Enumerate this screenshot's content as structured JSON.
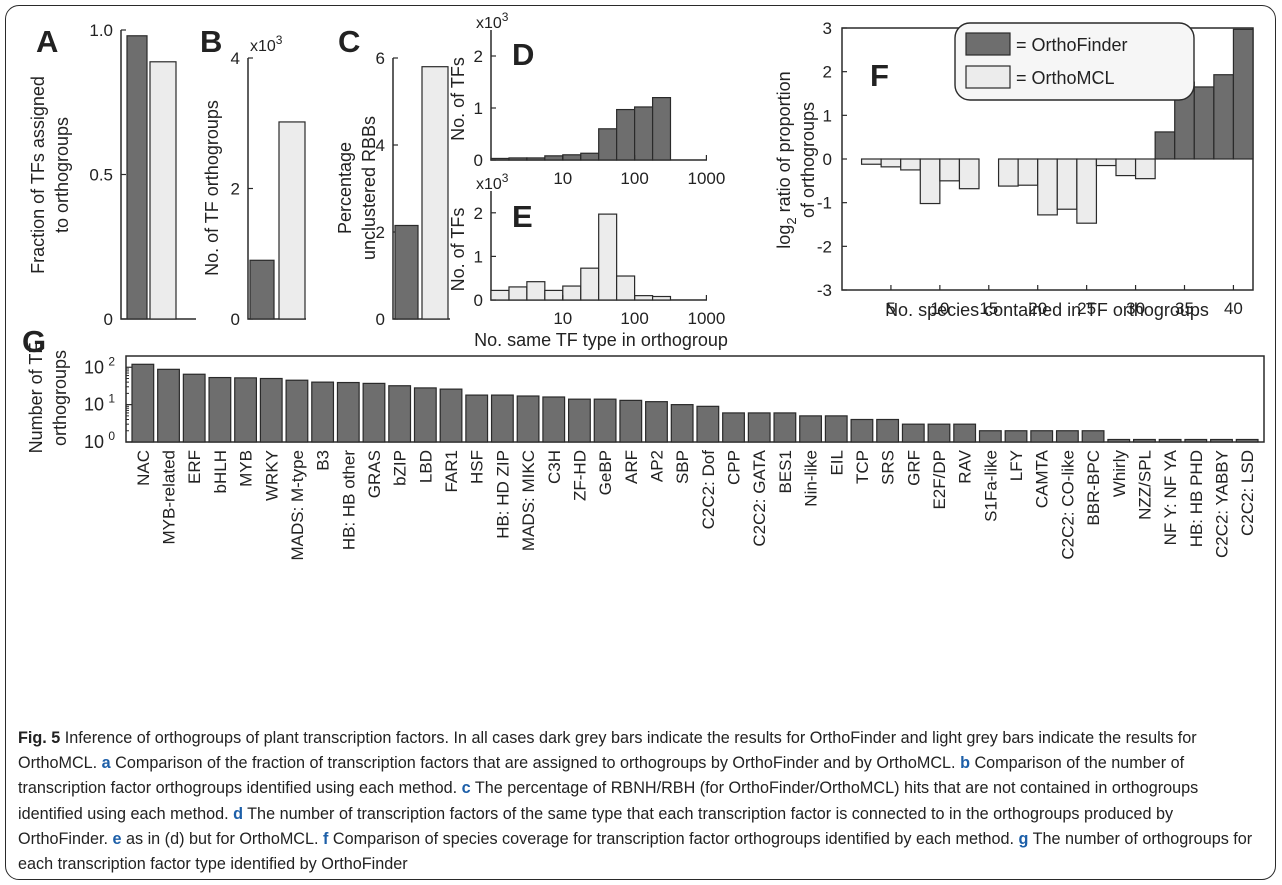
{
  "colors": {
    "orthofinder": "#6e6e6e",
    "orthomcl": "#ececec",
    "stroke": "#2a2a2a",
    "caption_accent": "#1d5fa8"
  },
  "legend": {
    "orthofinder": "= OrthoFinder",
    "orthomcl": "= OrthoMCL"
  },
  "chart_data": [
    {
      "panel": "A",
      "type": "bar",
      "ylabel": "Fraction of TFs assigned to orthogroups",
      "ylim": [
        0,
        1.0
      ],
      "yticks": [
        "0",
        "0.5",
        "1.0"
      ],
      "series": [
        {
          "name": "OrthoFinder",
          "values": [
            0.98
          ]
        },
        {
          "name": "OrthoMCL",
          "values": [
            0.89
          ]
        }
      ]
    },
    {
      "panel": "B",
      "type": "bar",
      "ylabel": "No. of TF orthogroups",
      "multiplier": "x10",
      "multiplier_exp": "3",
      "ylim": [
        0,
        4
      ],
      "yticks": [
        "0",
        "2",
        "4"
      ],
      "series": [
        {
          "name": "OrthoFinder",
          "values": [
            0.9
          ]
        },
        {
          "name": "OrthoMCL",
          "values": [
            3.02
          ]
        }
      ]
    },
    {
      "panel": "C",
      "type": "bar",
      "ylabel": "Percentage unclustered RBBs",
      "ylim": [
        0,
        6
      ],
      "yticks": [
        "0",
        "2",
        "4",
        "6"
      ],
      "series": [
        {
          "name": "OrthoFinder",
          "values": [
            2.15
          ]
        },
        {
          "name": "OrthoMCL",
          "values": [
            5.8
          ]
        }
      ]
    },
    {
      "panel": "D",
      "type": "bar",
      "scale": "log-x histogram",
      "ylabel": "No. of TFs",
      "multiplier": "x10",
      "multiplier_exp": "3",
      "ylim": [
        0,
        2.5
      ],
      "yticks": [
        "0",
        "1",
        "2"
      ],
      "xticks": [
        "10",
        "100",
        "1000"
      ],
      "bins": [
        [
          1,
          1.78,
          0.03
        ],
        [
          1.78,
          3.16,
          0.04
        ],
        [
          3.16,
          5.62,
          0.04
        ],
        [
          5.62,
          10,
          0.08
        ],
        [
          10,
          17.8,
          0.1
        ],
        [
          17.8,
          31.6,
          0.13
        ],
        [
          31.6,
          56.2,
          0.6
        ],
        [
          56.2,
          100,
          0.97
        ],
        [
          100,
          178,
          1.02
        ],
        [
          178,
          316,
          1.2
        ]
      ]
    },
    {
      "panel": "E",
      "type": "bar",
      "scale": "log-x histogram",
      "ylabel": "No. of TFs",
      "multiplier": "x10",
      "multiplier_exp": "3",
      "xlabel": "No. same TF type in orthogroup",
      "ylim": [
        0,
        2.5
      ],
      "yticks": [
        "0",
        "1",
        "2"
      ],
      "xticks": [
        "10",
        "100",
        "1000"
      ],
      "bins": [
        [
          1,
          1.78,
          0.22
        ],
        [
          1.78,
          3.16,
          0.3
        ],
        [
          3.16,
          5.62,
          0.42
        ],
        [
          5.62,
          10,
          0.22
        ],
        [
          10,
          17.8,
          0.32
        ],
        [
          17.8,
          31.6,
          0.73
        ],
        [
          31.6,
          56.2,
          1.97
        ],
        [
          56.2,
          100,
          0.55
        ],
        [
          100,
          178,
          0.1
        ],
        [
          178,
          316,
          0.08
        ]
      ]
    },
    {
      "panel": "F",
      "type": "bar",
      "ylabel": "log2 ratio of proportion of orthogroups",
      "xlabel": "No. species contained in TF orthogroups",
      "ylim": [
        -3,
        3
      ],
      "xlim": [
        0,
        42
      ],
      "yticks": [
        "-3",
        "-2",
        "-1",
        "0",
        "1",
        "2",
        "3"
      ],
      "xticks": [
        "5",
        "10",
        "15",
        "20",
        "25",
        "30",
        "35",
        "40"
      ],
      "x": [
        3,
        5,
        7,
        9,
        11,
        13,
        17,
        19,
        21,
        23,
        25,
        27,
        29,
        31,
        33,
        35,
        37,
        39,
        41
      ],
      "values": [
        -0.12,
        -0.18,
        -0.25,
        -1.02,
        -0.5,
        -0.68,
        -0.62,
        -0.6,
        -1.28,
        -1.15,
        -1.47,
        -0.15,
        -0.38,
        -0.45,
        0.62,
        1.76,
        1.65,
        1.93,
        2.97
      ]
    },
    {
      "panel": "G",
      "type": "bar",
      "scale": "log-y",
      "ylabel": "Number of TF orthogroups",
      "ylim": [
        1,
        200
      ],
      "categories": [
        "NAC",
        "MYB-related",
        "ERF",
        "bHLH",
        "MYB",
        "WRKY",
        "MADS: M-type",
        "B3",
        "HB: HB other",
        "GRAS",
        "bZIP",
        "LBD",
        "FAR1",
        "HSF",
        "HB: HD ZIP",
        "MADS: MIKC",
        "C3H",
        "ZF-HD",
        "GeBP",
        "ARF",
        "AP2",
        "SBP",
        "C2C2: Dof",
        "CPP",
        "C2C2: GATA",
        "BES1",
        "Nin-like",
        "EIL",
        "TCP",
        "SRS",
        "GRF",
        "E2F/DP",
        "RAV",
        "S1Fa-like",
        "LFY",
        "CAMTA",
        "C2C2: CO-like",
        "BBR-BPC",
        "Whirly",
        "NZZ/SPL",
        "NF Y: NF YA",
        "HB: HB PHD",
        "C2C2: YABBY",
        "C2C2: LSD"
      ],
      "values": [
        120,
        88,
        65,
        53,
        52,
        50,
        45,
        40,
        39,
        37,
        32,
        28,
        26,
        18,
        18,
        17,
        16,
        14,
        14,
        13,
        12,
        10,
        9,
        6,
        6,
        6,
        5,
        5,
        4,
        4,
        3,
        3,
        3,
        2,
        2,
        2,
        2,
        2,
        1,
        1,
        1,
        1,
        1,
        1
      ]
    }
  ],
  "caption": {
    "label": "Fig. 5",
    "title": " Inference of orthogroups of plant transcription factors. In all cases dark grey bars indicate the results for OrthoFinder and light grey bars indicate the results for OrthoMCL. ",
    "parts": [
      {
        "tag": "a",
        "text": " Comparison of the fraction of transcription factors that are assigned to orthogroups by OrthoFinder and by OrthoMCL. "
      },
      {
        "tag": "b",
        "text": " Comparison of the number of transcription factor orthogroups identified using each method. "
      },
      {
        "tag": "c",
        "text": " The percentage of RBNH/RBH (for OrthoFinder/OrthoMCL) hits that are not contained in orthogroups identified using each method. "
      },
      {
        "tag": "d",
        "text": " The number of transcription factors of the same type that each transcription factor is connected to in the orthogroups produced by OrthoFinder. "
      },
      {
        "tag": "e",
        "text": " as in (d) but for OrthoMCL. "
      },
      {
        "tag": "f",
        "text": " Comparison of species coverage for transcription factor orthogroups identified by each method. "
      },
      {
        "tag": "g",
        "text": " The number of orthogroups for each transcription factor type identified by OrthoFinder"
      }
    ]
  }
}
